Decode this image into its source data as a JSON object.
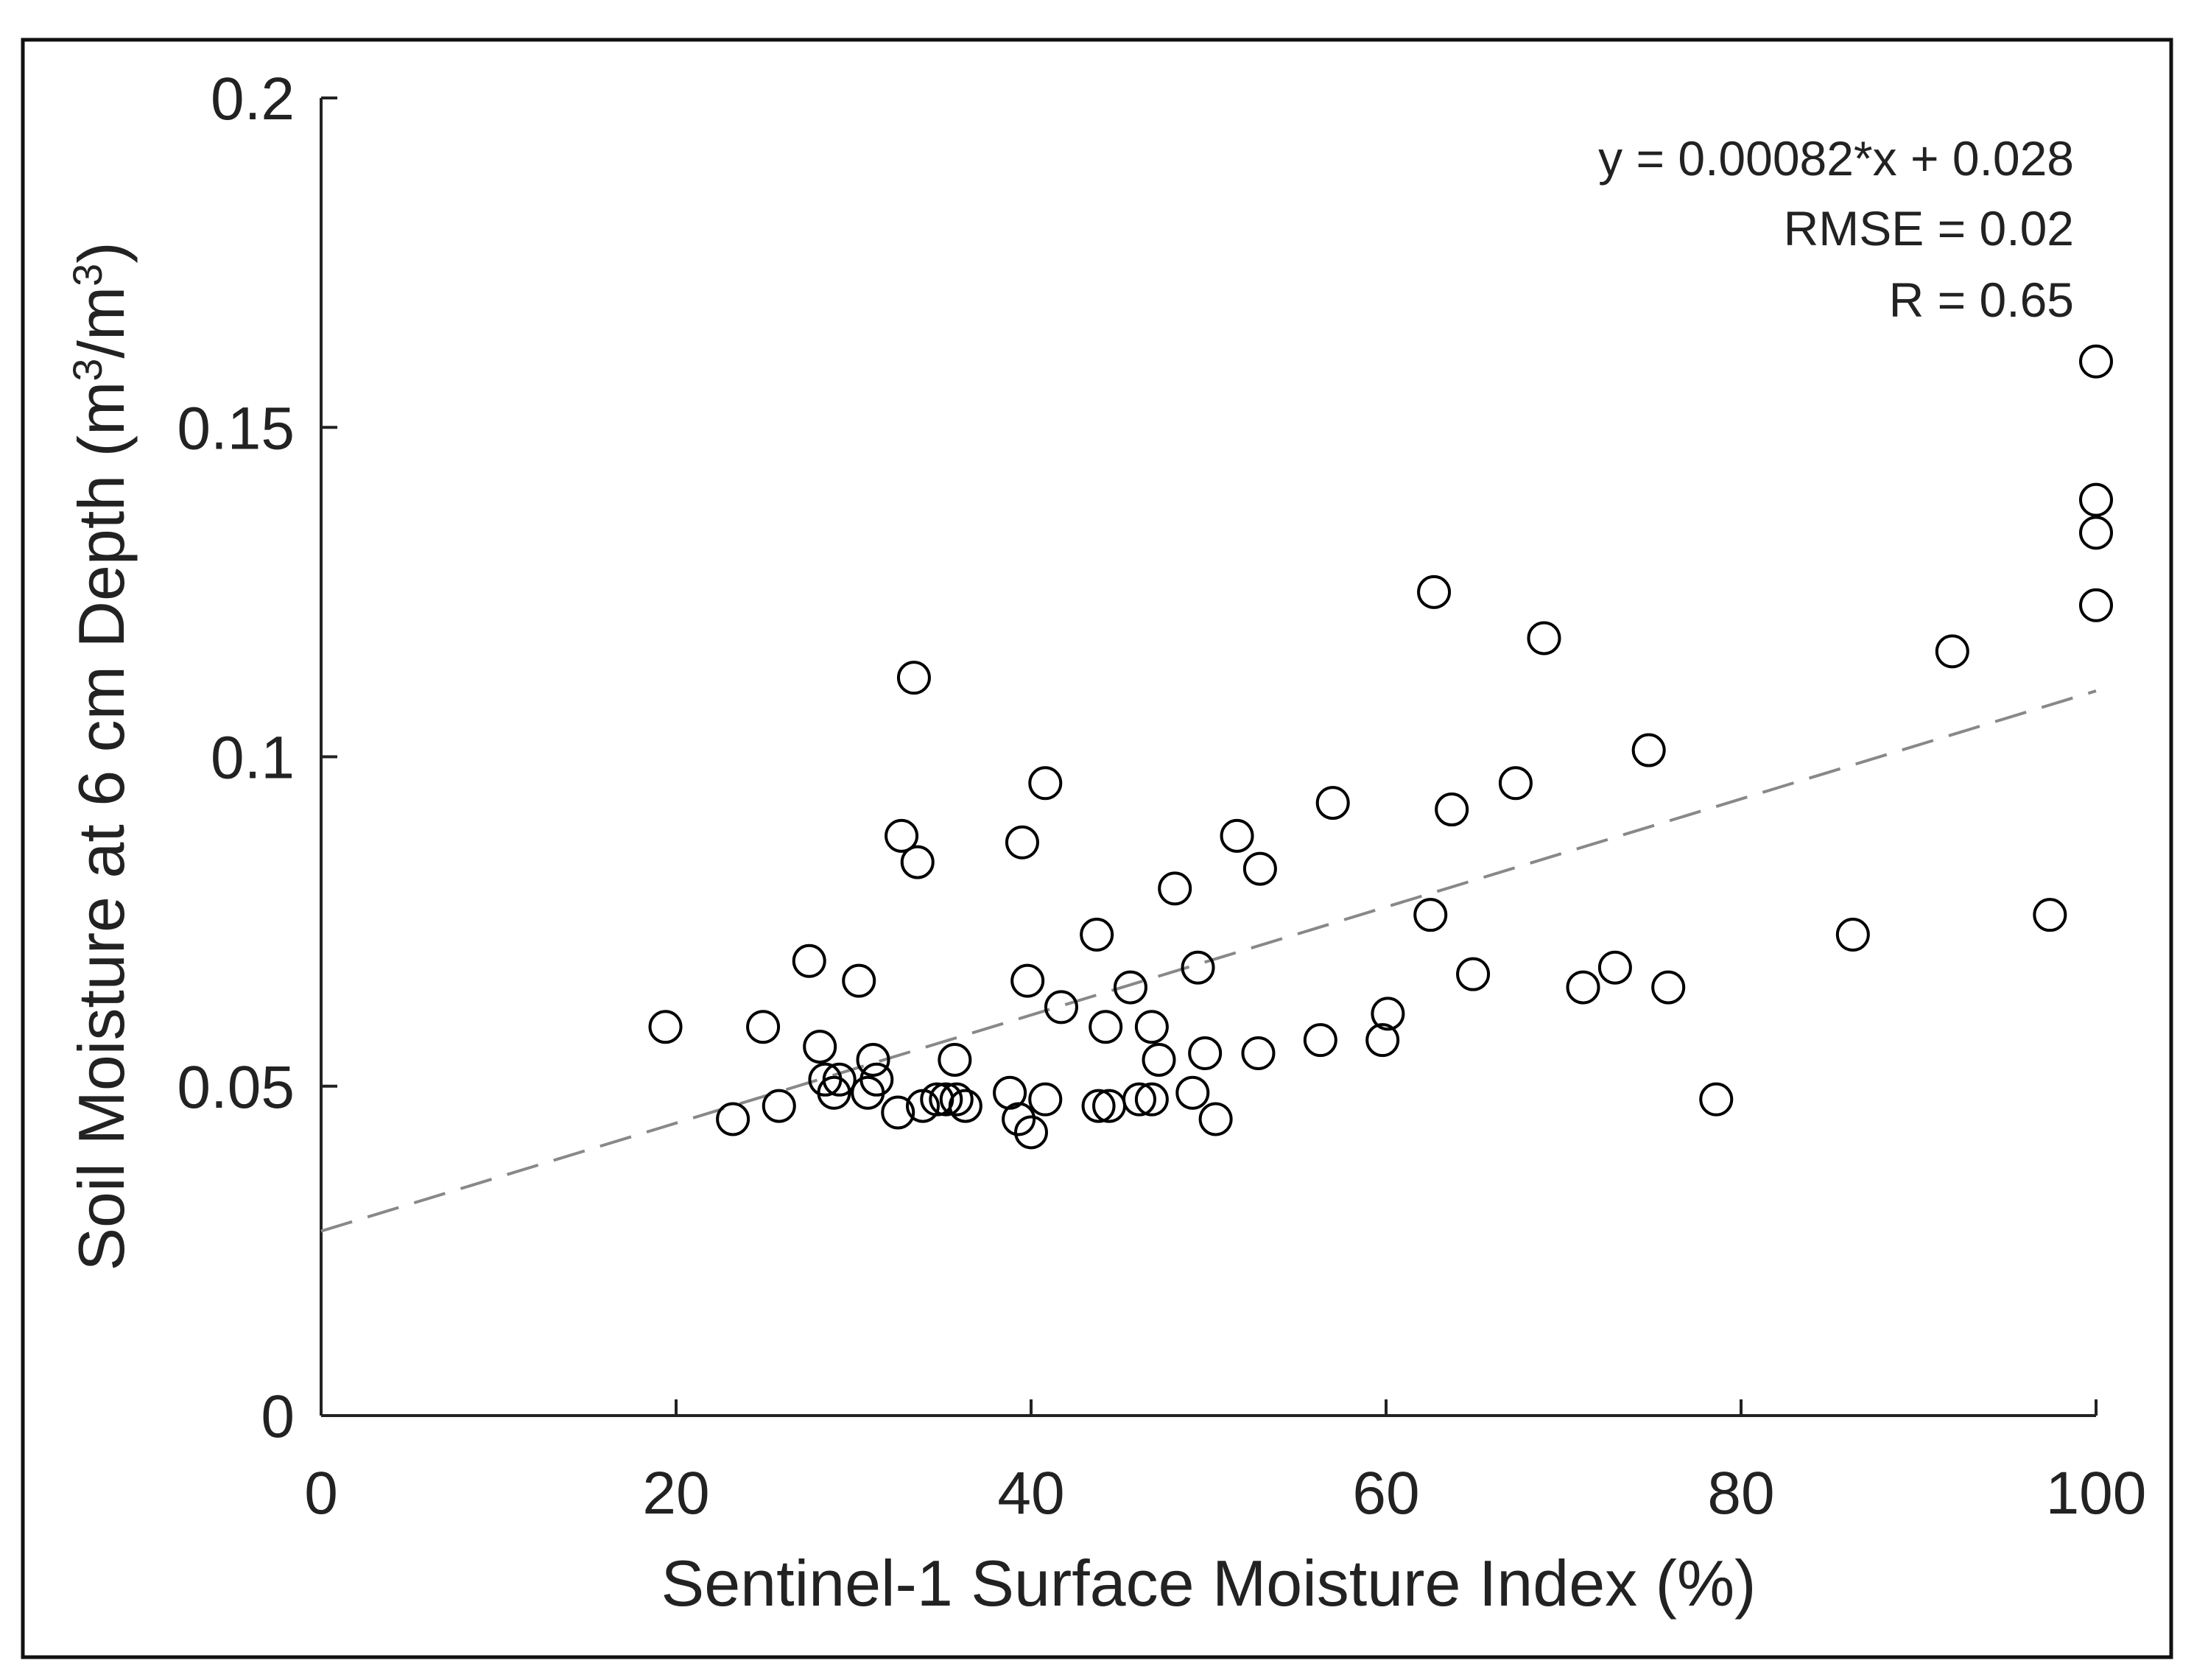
{
  "chart_data": {
    "type": "scatter",
    "title": "",
    "xlabel": "Sentinel-1 Surface Moisture Index (%)",
    "ylabel_main": "Soil Moisture at 6 cm Depth (m",
    "ylabel_exp1": "3",
    "ylabel_mid": "/m",
    "ylabel_exp2": "3",
    "ylabel_end": ")",
    "xlim": [
      0,
      100
    ],
    "ylim": [
      0,
      0.2
    ],
    "x_ticks": [
      0,
      20,
      40,
      60,
      80,
      100
    ],
    "x_tick_labels": [
      "0",
      "20",
      "40",
      "60",
      "80",
      "100"
    ],
    "y_ticks": [
      0,
      0.05,
      0.1,
      0.15,
      0.2
    ],
    "y_tick_labels": [
      "0",
      "0.05",
      "0.1",
      "0.15",
      "0.2"
    ],
    "grid": false,
    "fit_line": {
      "slope": 0.00082,
      "intercept": 0.028,
      "style": "dashed"
    },
    "annotations": [
      "y = 0.00082*x + 0.028",
      "RMSE = 0.02",
      "R = 0.65"
    ],
    "marker_color": "#000000",
    "fit_color": "#888888",
    "points": [
      {
        "x": 19.4,
        "y": 0.059
      },
      {
        "x": 23.2,
        "y": 0.045
      },
      {
        "x": 24.9,
        "y": 0.059
      },
      {
        "x": 25.8,
        "y": 0.047
      },
      {
        "x": 27.5,
        "y": 0.069
      },
      {
        "x": 28.1,
        "y": 0.056
      },
      {
        "x": 28.4,
        "y": 0.051
      },
      {
        "x": 28.9,
        "y": 0.049
      },
      {
        "x": 29.2,
        "y": 0.051
      },
      {
        "x": 30.3,
        "y": 0.066
      },
      {
        "x": 30.8,
        "y": 0.049
      },
      {
        "x": 31.1,
        "y": 0.054
      },
      {
        "x": 31.3,
        "y": 0.051
      },
      {
        "x": 32.5,
        "y": 0.046
      },
      {
        "x": 32.7,
        "y": 0.088
      },
      {
        "x": 33.4,
        "y": 0.112
      },
      {
        "x": 33.6,
        "y": 0.084
      },
      {
        "x": 33.9,
        "y": 0.047
      },
      {
        "x": 34.7,
        "y": 0.048
      },
      {
        "x": 35.2,
        "y": 0.048
      },
      {
        "x": 35.7,
        "y": 0.054
      },
      {
        "x": 35.8,
        "y": 0.048
      },
      {
        "x": 36.3,
        "y": 0.047
      },
      {
        "x": 38.8,
        "y": 0.049
      },
      {
        "x": 39.3,
        "y": 0.045
      },
      {
        "x": 39.5,
        "y": 0.087
      },
      {
        "x": 39.8,
        "y": 0.066
      },
      {
        "x": 40.0,
        "y": 0.043
      },
      {
        "x": 40.8,
        "y": 0.048
      },
      {
        "x": 40.8,
        "y": 0.096
      },
      {
        "x": 41.7,
        "y": 0.062
      },
      {
        "x": 43.7,
        "y": 0.073
      },
      {
        "x": 43.8,
        "y": 0.047
      },
      {
        "x": 44.2,
        "y": 0.059
      },
      {
        "x": 44.4,
        "y": 0.047
      },
      {
        "x": 45.6,
        "y": 0.065
      },
      {
        "x": 46.1,
        "y": 0.048
      },
      {
        "x": 46.8,
        "y": 0.059
      },
      {
        "x": 46.8,
        "y": 0.048
      },
      {
        "x": 47.2,
        "y": 0.054
      },
      {
        "x": 48.1,
        "y": 0.08
      },
      {
        "x": 49.1,
        "y": 0.049
      },
      {
        "x": 49.4,
        "y": 0.068
      },
      {
        "x": 49.8,
        "y": 0.055
      },
      {
        "x": 50.4,
        "y": 0.045
      },
      {
        "x": 51.6,
        "y": 0.088
      },
      {
        "x": 52.8,
        "y": 0.055
      },
      {
        "x": 52.9,
        "y": 0.083
      },
      {
        "x": 56.3,
        "y": 0.057
      },
      {
        "x": 57.0,
        "y": 0.093
      },
      {
        "x": 59.8,
        "y": 0.057
      },
      {
        "x": 60.1,
        "y": 0.061
      },
      {
        "x": 62.5,
        "y": 0.076
      },
      {
        "x": 62.7,
        "y": 0.125
      },
      {
        "x": 63.7,
        "y": 0.092
      },
      {
        "x": 64.9,
        "y": 0.067
      },
      {
        "x": 67.3,
        "y": 0.096
      },
      {
        "x": 68.9,
        "y": 0.118
      },
      {
        "x": 71.1,
        "y": 0.065
      },
      {
        "x": 72.9,
        "y": 0.068
      },
      {
        "x": 74.8,
        "y": 0.101
      },
      {
        "x": 75.9,
        "y": 0.065
      },
      {
        "x": 78.6,
        "y": 0.048
      },
      {
        "x": 86.3,
        "y": 0.073
      },
      {
        "x": 91.9,
        "y": 0.116
      },
      {
        "x": 97.4,
        "y": 0.076
      },
      {
        "x": 100.0,
        "y": 0.16
      },
      {
        "x": 100.0,
        "y": 0.139
      },
      {
        "x": 100.0,
        "y": 0.134
      },
      {
        "x": 100.0,
        "y": 0.123
      }
    ]
  }
}
